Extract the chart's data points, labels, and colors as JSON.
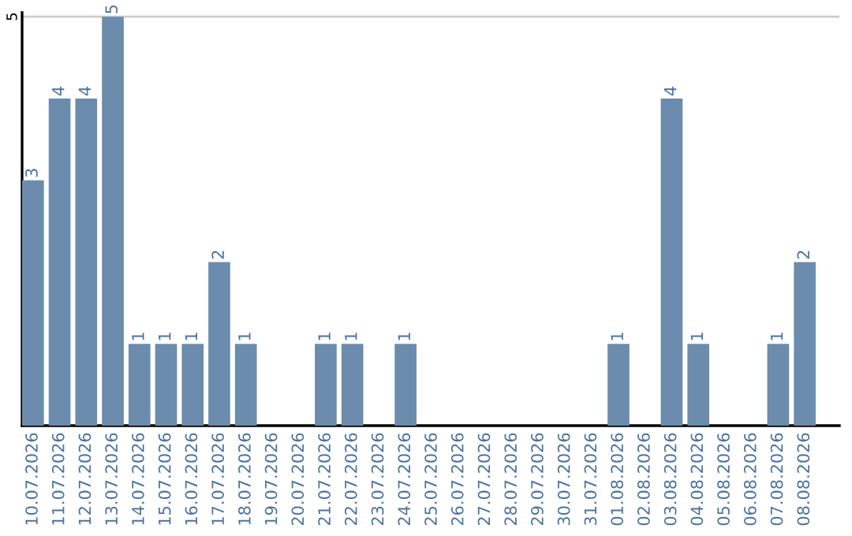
{
  "chart_data": {
    "type": "bar",
    "categories": [
      "10.07.2026",
      "11.07.2026",
      "12.07.2026",
      "13.07.2026",
      "14.07.2026",
      "15.07.2026",
      "16.07.2026",
      "17.07.2026",
      "18.07.2026",
      "19.07.2026",
      "20.07.2026",
      "21.07.2026",
      "22.07.2026",
      "23.07.2026",
      "24.07.2026",
      "25.07.2026",
      "26.07.2026",
      "27.07.2026",
      "28.07.2026",
      "29.07.2026",
      "30.07.2026",
      "31.07.2026",
      "01.08.2026",
      "02.08.2026",
      "03.08.2026",
      "04.08.2026",
      "05.08.2026",
      "06.08.2026",
      "07.08.2026",
      "08.08.2026"
    ],
    "values": [
      3,
      4,
      4,
      5,
      1,
      1,
      1,
      2,
      1,
      0,
      0,
      1,
      1,
      0,
      1,
      0,
      0,
      0,
      0,
      0,
      0,
      0,
      1,
      0,
      4,
      1,
      0,
      0,
      1,
      2
    ],
    "value_labels": [
      "3",
      "4",
      "4",
      "5",
      "1",
      "1",
      "1",
      "2",
      "1",
      null,
      null,
      "1",
      "1",
      null,
      "1",
      null,
      null,
      null,
      null,
      null,
      null,
      null,
      "1",
      null,
      "4",
      "1",
      null,
      null,
      "1",
      "2"
    ],
    "color": "#6b8cac",
    "ylim": [
      0,
      5.05
    ],
    "yticks": [
      5
    ],
    "grid": "y"
  }
}
